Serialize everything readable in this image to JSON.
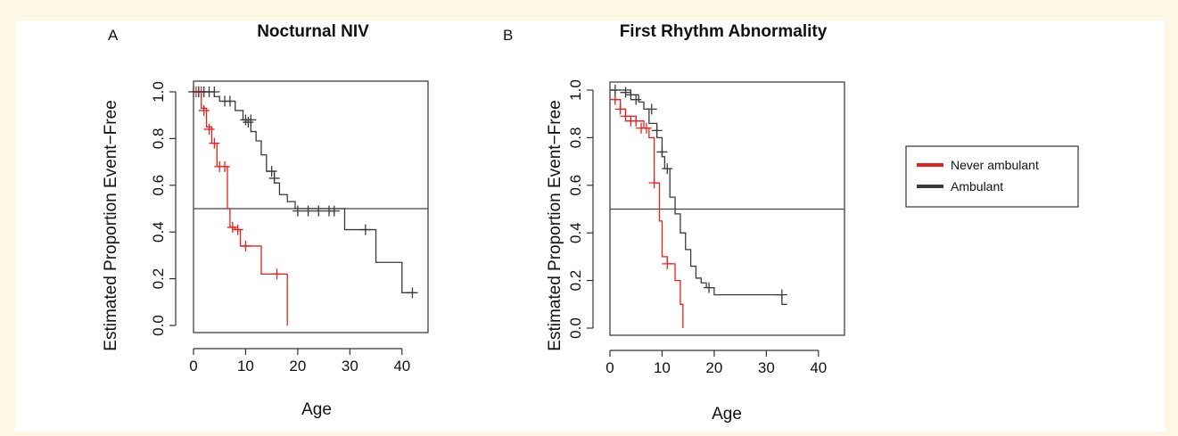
{
  "colors": {
    "never_ambulant": "#e8201d",
    "ambulant": "#3a3a3a",
    "page_background": "#fdf8e4"
  },
  "legend": {
    "items": [
      {
        "label": "Never ambulant",
        "color": "#e8201d"
      },
      {
        "label": "Ambulant",
        "color": "#3a3a3a"
      }
    ]
  },
  "chart_data": [
    {
      "type": "line",
      "panel_label": "A",
      "title": "Nocturnal NIV",
      "xlabel": "Age",
      "ylabel": "Estimated Proportion Event−Free",
      "xlim": [
        0,
        45
      ],
      "ylim": [
        0,
        1.0
      ],
      "x_ticks": [
        0,
        10,
        20,
        30,
        40
      ],
      "y_ticks": [
        "0.0",
        "0.2",
        "0.4",
        "0.6",
        "0.8",
        "1.0"
      ],
      "reference_line_y": 0.5,
      "series": [
        {
          "name": "Never ambulant",
          "color": "#e8201d",
          "steps": [
            [
              0,
              1.0
            ],
            [
              1.5,
              0.93
            ],
            [
              2.5,
              0.85
            ],
            [
              3.5,
              0.78
            ],
            [
              4.5,
              0.68
            ],
            [
              6.5,
              0.5
            ],
            [
              7,
              0.42
            ],
            [
              8,
              0.41
            ],
            [
              9,
              0.34
            ],
            [
              13,
              0.22
            ],
            [
              18,
              0.0
            ]
          ],
          "end_x": 18,
          "censored": [
            [
              0.5,
              1.0
            ],
            [
              1,
              1.0
            ],
            [
              1.5,
              1.0
            ],
            [
              2,
              0.92
            ],
            [
              3,
              0.84
            ],
            [
              4,
              0.78
            ],
            [
              5,
              0.68
            ],
            [
              6,
              0.68
            ],
            [
              7.5,
              0.42
            ],
            [
              8.5,
              0.41
            ],
            [
              10,
              0.34
            ],
            [
              16,
              0.22
            ]
          ]
        },
        {
          "name": "Ambulant",
          "color": "#3a3a3a",
          "steps": [
            [
              0,
              1.0
            ],
            [
              4,
              0.98
            ],
            [
              5,
              0.96
            ],
            [
              8,
              0.92
            ],
            [
              9.5,
              0.88
            ],
            [
              11,
              0.83
            ],
            [
              12,
              0.79
            ],
            [
              13,
              0.73
            ],
            [
              14,
              0.66
            ],
            [
              15.5,
              0.61
            ],
            [
              16.5,
              0.56
            ],
            [
              18,
              0.53
            ],
            [
              19.5,
              0.5
            ],
            [
              29,
              0.41
            ],
            [
              35,
              0.27
            ],
            [
              40,
              0.14
            ]
          ],
          "end_x": 42,
          "censored": [
            [
              0,
              1.0
            ],
            [
              1,
              1.0
            ],
            [
              2,
              1.0
            ],
            [
              3,
              1.0
            ],
            [
              4,
              1.0
            ],
            [
              6,
              0.96
            ],
            [
              7,
              0.96
            ],
            [
              10,
              0.88
            ],
            [
              10.5,
              0.87
            ],
            [
              11,
              0.88
            ],
            [
              15,
              0.66
            ],
            [
              15.5,
              0.63
            ],
            [
              20,
              0.49
            ],
            [
              22,
              0.49
            ],
            [
              24,
              0.49
            ],
            [
              26,
              0.49
            ],
            [
              27,
              0.49
            ],
            [
              33,
              0.41
            ],
            [
              42,
              0.14
            ]
          ]
        }
      ]
    },
    {
      "type": "line",
      "panel_label": "B",
      "title": "First Rhythm Abnormality",
      "xlabel": "Age",
      "ylabel": "Estimated Proportion Event−Free",
      "xlim": [
        0,
        45
      ],
      "ylim": [
        0,
        1.0
      ],
      "x_ticks": [
        0,
        10,
        20,
        30,
        40
      ],
      "y_ticks": [
        "0.0",
        "0.2",
        "0.4",
        "0.6",
        "0.8",
        "1.0"
      ],
      "reference_line_y": 0.5,
      "series": [
        {
          "name": "Never ambulant",
          "color": "#e8201d",
          "steps": [
            [
              0,
              1.0
            ],
            [
              1,
              0.96
            ],
            [
              2,
              0.92
            ],
            [
              3,
              0.89
            ],
            [
              5,
              0.87
            ],
            [
              6.5,
              0.84
            ],
            [
              7.5,
              0.8
            ],
            [
              8.5,
              0.61
            ],
            [
              9.5,
              0.45
            ],
            [
              10,
              0.3
            ],
            [
              11,
              0.27
            ],
            [
              12.5,
              0.2
            ],
            [
              13.5,
              0.1
            ],
            [
              14,
              0.0
            ]
          ],
          "end_x": 14,
          "censored": [
            [
              1,
              0.96
            ],
            [
              2,
              0.92
            ],
            [
              3,
              0.89
            ],
            [
              4,
              0.87
            ],
            [
              5,
              0.87
            ],
            [
              6,
              0.84
            ],
            [
              7,
              0.84
            ],
            [
              8.5,
              0.61
            ],
            [
              11,
              0.27
            ]
          ]
        },
        {
          "name": "Ambulant",
          "color": "#3a3a3a",
          "steps": [
            [
              0,
              1.0
            ],
            [
              4,
              0.98
            ],
            [
              5.5,
              0.95
            ],
            [
              6.5,
              0.92
            ],
            [
              7.5,
              0.86
            ],
            [
              9,
              0.8
            ],
            [
              10,
              0.72
            ],
            [
              10.5,
              0.67
            ],
            [
              11.5,
              0.55
            ],
            [
              12.5,
              0.48
            ],
            [
              13.5,
              0.4
            ],
            [
              14.5,
              0.33
            ],
            [
              15.5,
              0.26
            ],
            [
              16.5,
              0.21
            ],
            [
              17.5,
              0.19
            ],
            [
              18.5,
              0.17
            ],
            [
              20,
              0.14
            ],
            [
              33,
              0.1
            ]
          ],
          "end_x": 34,
          "censored": [
            [
              1,
              1.0
            ],
            [
              3,
              0.99
            ],
            [
              4,
              0.98
            ],
            [
              5,
              0.96
            ],
            [
              8,
              0.92
            ],
            [
              9,
              0.83
            ],
            [
              10,
              0.74
            ],
            [
              11,
              0.67
            ],
            [
              19,
              0.17
            ],
            [
              33,
              0.14
            ]
          ]
        }
      ]
    }
  ]
}
